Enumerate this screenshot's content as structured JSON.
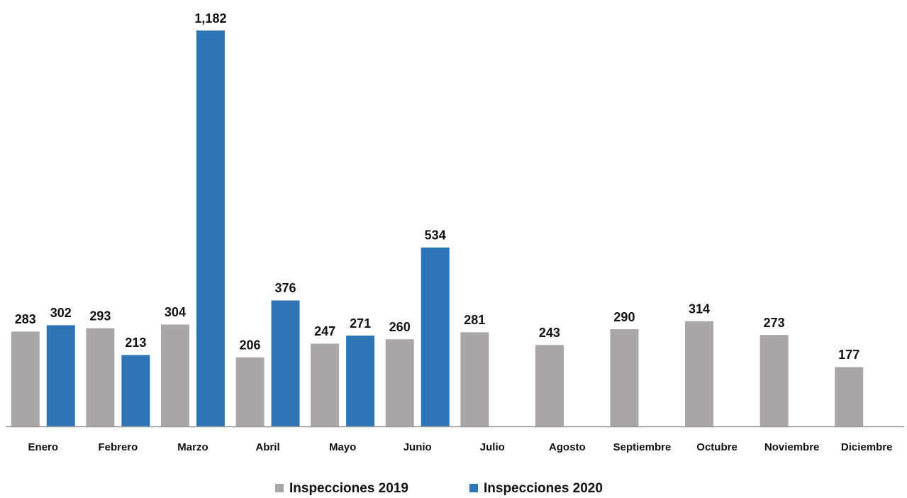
{
  "chart_data": {
    "type": "bar",
    "categories": [
      "Enero",
      "Febrero",
      "Marzo",
      "Abril",
      "Mayo",
      "Junio",
      "Julio",
      "Agosto",
      "Septiembre",
      "Octubre",
      "Noviembre",
      "Diciembre"
    ],
    "series": [
      {
        "name": "Inspecciones  2019",
        "color": "#a9a6a5",
        "values": [
          283,
          293,
          304,
          206,
          247,
          260,
          281,
          243,
          290,
          314,
          273,
          177
        ]
      },
      {
        "name": "Inspecciones  2020",
        "color": "#2e75b6",
        "values": [
          302,
          213,
          1182,
          376,
          271,
          534,
          null,
          null,
          null,
          null,
          null,
          null
        ],
        "value_labels": [
          "302",
          "213",
          "1,182",
          "376",
          "271",
          "534",
          null,
          null,
          null,
          null,
          null,
          null
        ]
      }
    ],
    "legend": "bottom"
  }
}
